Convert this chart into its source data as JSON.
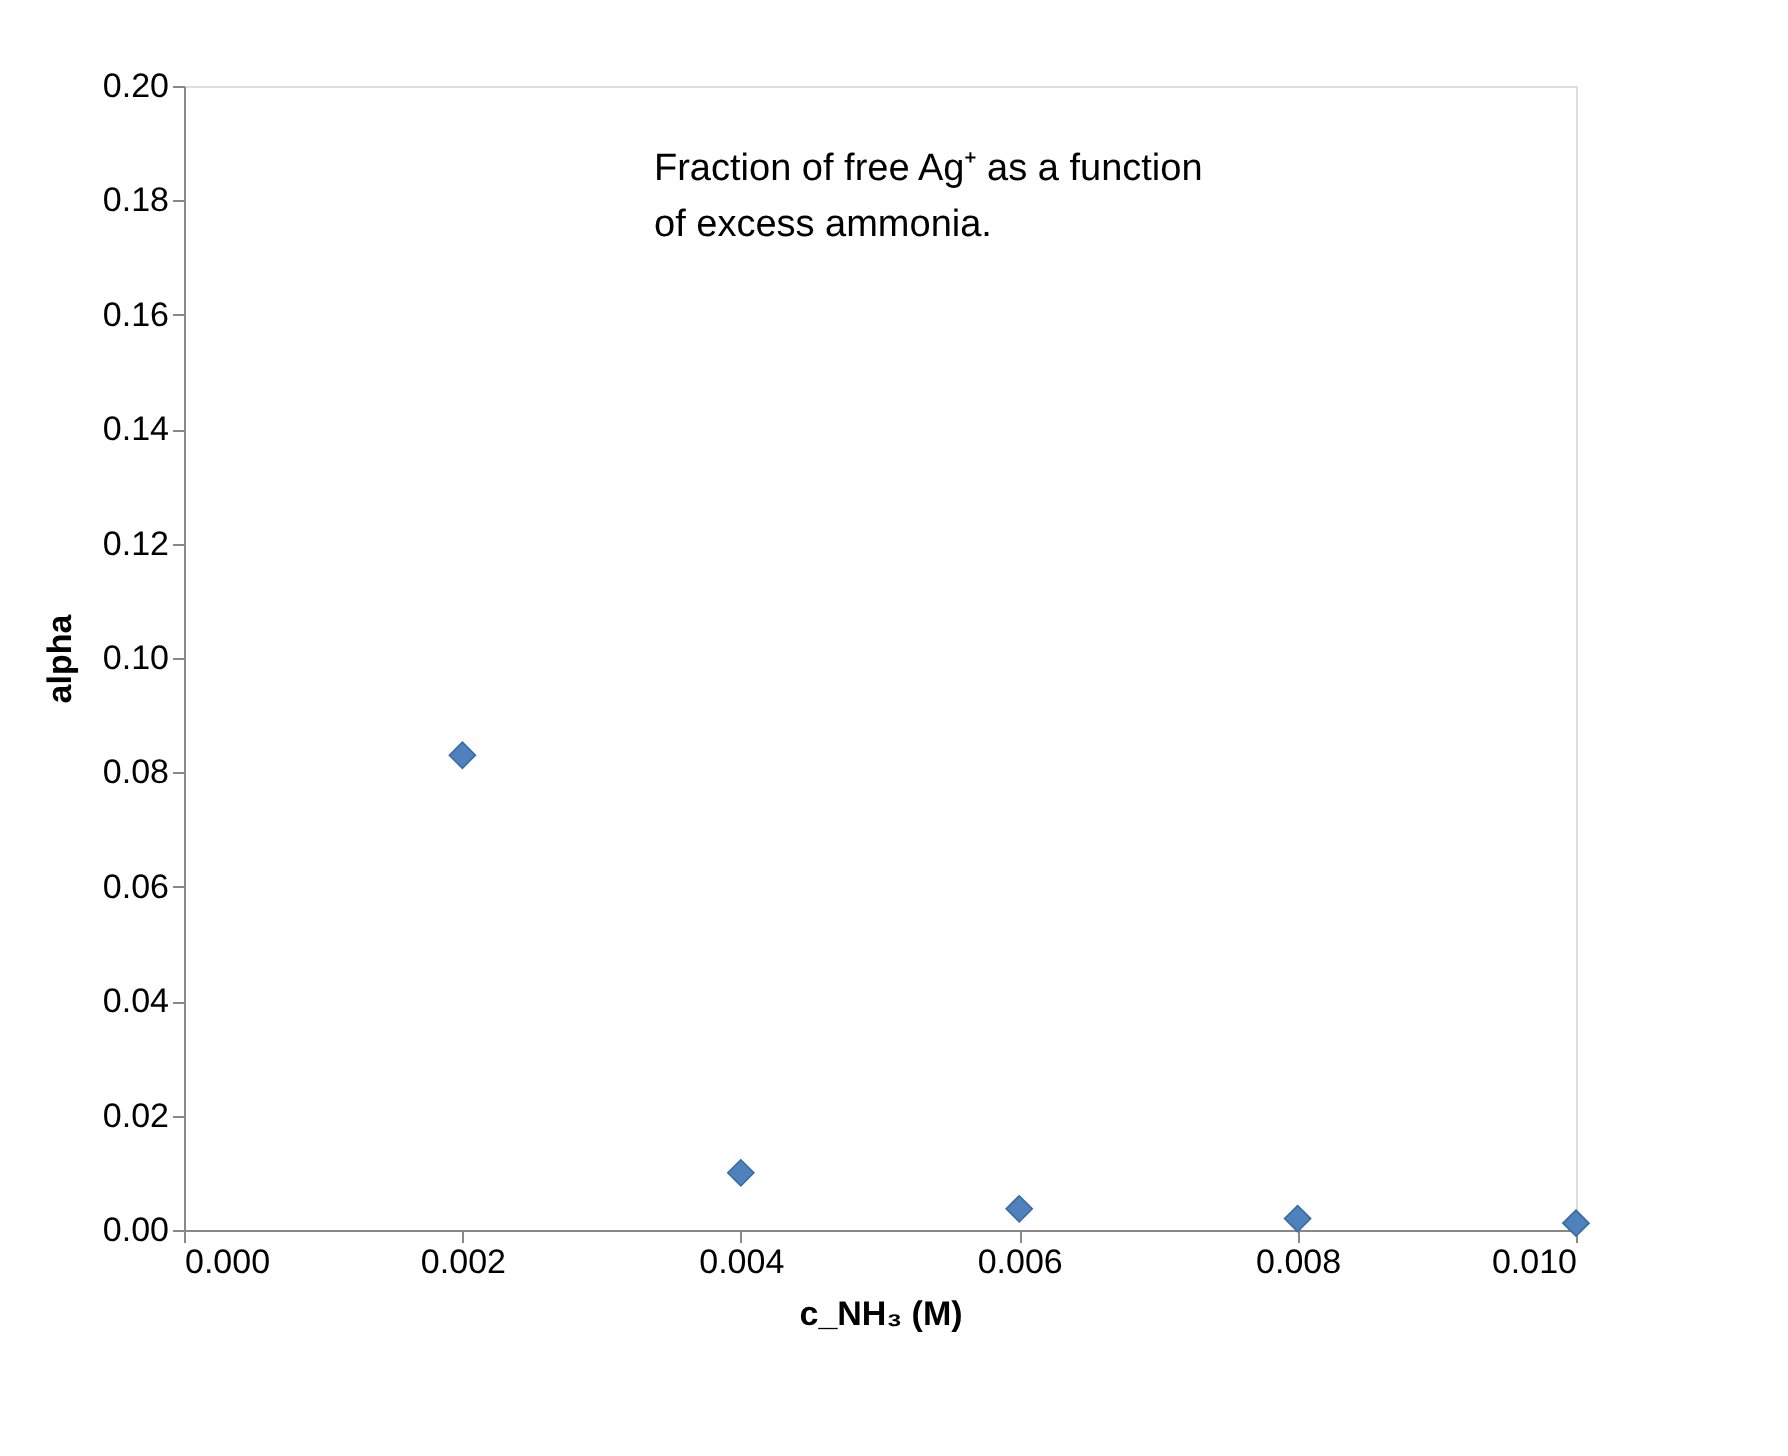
{
  "chart_data": {
    "type": "scatter",
    "xlabel": "c_NH₃ (M)",
    "ylabel": "alpha",
    "annotations": [
      "Fraction of free Ag⁺ as a function\nof excess ammonia."
    ],
    "x": [
      0.002,
      0.004,
      0.006,
      0.008,
      0.01
    ],
    "series": [
      {
        "color": "#4f81bd",
        "values": [
          0.083,
          0.01,
          0.0037,
          0.002,
          0.0012
        ]
      }
    ],
    "marker": "diamond",
    "grid": false,
    "xlim": [
      0,
      0.01
    ],
    "ylim": [
      0,
      0.2
    ],
    "xticks": [
      {
        "value": 0,
        "label": "0.000"
      },
      {
        "value": 0.002,
        "label": "0.002"
      },
      {
        "value": 0.004,
        "label": "0.004"
      },
      {
        "value": 0.006,
        "label": "0.006"
      },
      {
        "value": 0.008,
        "label": "0.008"
      },
      {
        "value": 0.01,
        "label": "0.010"
      }
    ],
    "yticks": [
      {
        "value": 0,
        "label": "0.00"
      },
      {
        "value": 0.02,
        "label": "0.02"
      },
      {
        "value": 0.04,
        "label": "0.04"
      },
      {
        "value": 0.06,
        "label": "0.06"
      },
      {
        "value": 0.08,
        "label": "0.08"
      },
      {
        "value": 0.1,
        "label": "0.10"
      },
      {
        "value": 0.12,
        "label": "0.12"
      },
      {
        "value": 0.14,
        "label": "0.14"
      },
      {
        "value": 0.16,
        "label": "0.16"
      },
      {
        "value": 0.18,
        "label": "0.18"
      },
      {
        "value": 0.2,
        "label": "0.20"
      }
    ]
  }
}
